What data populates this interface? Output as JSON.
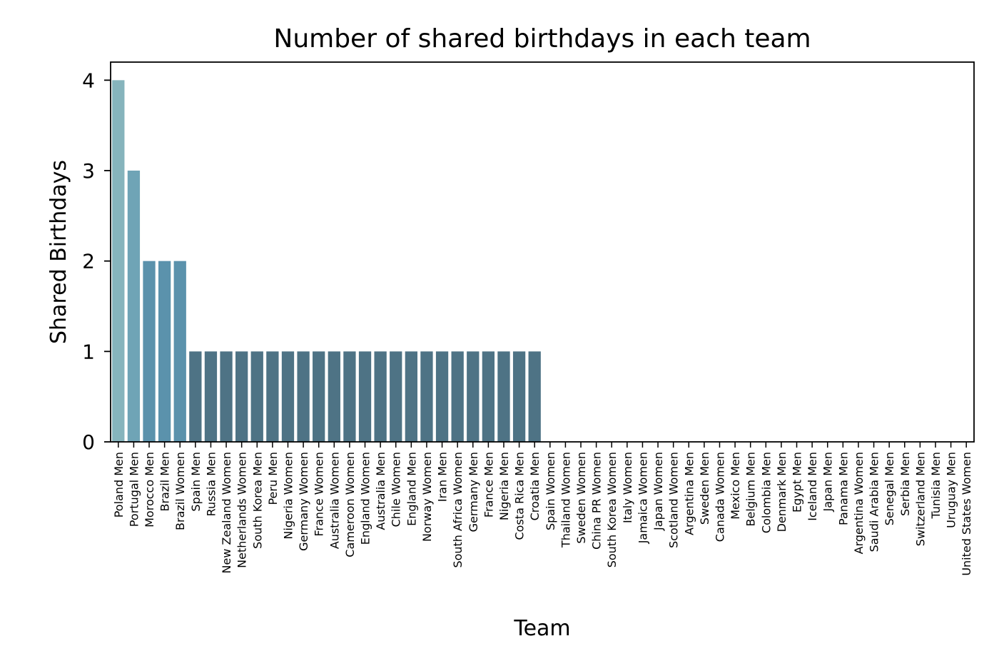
{
  "chart_data": {
    "type": "bar",
    "title": "Number of shared birthdays in each team",
    "xlabel": "Team",
    "ylabel": "Shared Birthdays",
    "ylim": [
      0,
      4.2
    ],
    "yticks": [
      0,
      1,
      2,
      3,
      4
    ],
    "grid": false,
    "categories": [
      "Poland Men",
      "Portugal Men",
      "Morocco Men",
      "Brazil Men",
      "Brazil Women",
      "Spain Men",
      "Russia Men",
      "New Zealand Women",
      "Netherlands Women",
      "South Korea Men",
      "Peru Men",
      "Nigeria Women",
      "Germany Women",
      "France Women",
      "Australia Women",
      "Cameroon Women",
      "England Women",
      "Australia Men",
      "Chile Women",
      "England Men",
      "Norway Women",
      "Iran Men",
      "South Africa Women",
      "Germany Men",
      "France Men",
      "Nigeria Men",
      "Costa Rica Men",
      "Croatia Men",
      "Spain Women",
      "Thailand Women",
      "Sweden Women",
      "China PR Women",
      "South Korea Women",
      "Italy Women",
      "Jamaica Women",
      "Japan Women",
      "Scotland Women",
      "Argentina Men",
      "Sweden Men",
      "Canada Women",
      "Mexico Men",
      "Belgium Men",
      "Colombia Men",
      "Denmark Men",
      "Egypt Men",
      "Iceland Men",
      "Japan Men",
      "Panama Men",
      "Argentina Women",
      "Saudi Arabia Men",
      "Senegal Men",
      "Serbia Men",
      "Switzerland Men",
      "Tunisia Men",
      "Uruguay Men",
      "United States Women"
    ],
    "values": [
      4,
      3,
      2,
      2,
      2,
      1,
      1,
      1,
      1,
      1,
      1,
      1,
      1,
      1,
      1,
      1,
      1,
      1,
      1,
      1,
      1,
      1,
      1,
      1,
      1,
      1,
      1,
      1,
      0,
      0,
      0,
      0,
      0,
      0,
      0,
      0,
      0,
      0,
      0,
      0,
      0,
      0,
      0,
      0,
      0,
      0,
      0,
      0,
      0,
      0,
      0,
      0,
      0,
      0,
      0,
      0
    ],
    "colors": {
      "4": "#86b4bc",
      "3": "#6fa4b6",
      "2": "#5b92ac",
      "1": "#4e7385",
      "0": "#4e7385"
    }
  }
}
